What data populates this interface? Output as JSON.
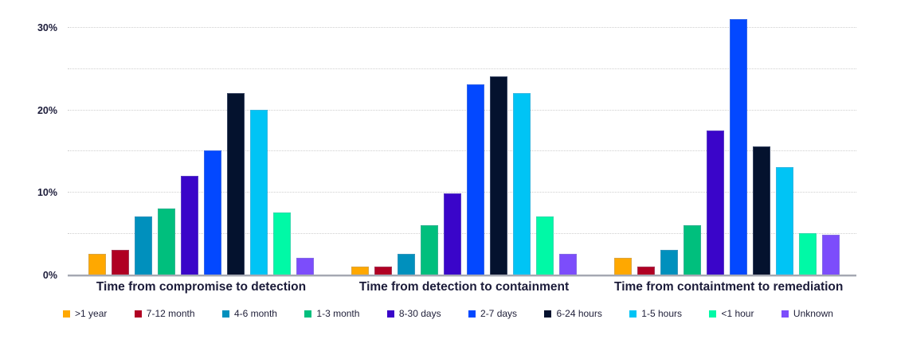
{
  "chart_data": {
    "type": "bar",
    "title": "",
    "xlabel": "",
    "ylabel": "",
    "categories": [
      "Time from compromise to detection",
      "Time from detection to containment",
      "Time from containtment to remediation"
    ],
    "series": [
      {
        "name": ">1 year",
        "color": "#FFA800",
        "values": [
          2.5,
          1,
          2
        ]
      },
      {
        "name": "7-12 month",
        "color": "#B00023",
        "values": [
          3,
          1,
          1
        ]
      },
      {
        "name": "4-6 month",
        "color": "#0090BD",
        "values": [
          7,
          2.5,
          3
        ]
      },
      {
        "name": "1-3 month",
        "color": "#00BF7D",
        "values": [
          8,
          6,
          6
        ]
      },
      {
        "name": "8-30 days",
        "color": "#3A05C9",
        "values": [
          12,
          9.8,
          17.5
        ]
      },
      {
        "name": "2-7 days",
        "color": "#0348FF",
        "values": [
          15,
          23,
          31
        ]
      },
      {
        "name": "6-24 hours",
        "color": "#04122E",
        "values": [
          22,
          24,
          15.5
        ]
      },
      {
        "name": "1-5 hours",
        "color": "#00C4F5",
        "values": [
          20,
          22,
          13
        ]
      },
      {
        "name": "<1 hour",
        "color": "#00F9A6",
        "values": [
          7.5,
          7,
          5
        ]
      },
      {
        "name": "Unknown",
        "color": "#7C4DFB",
        "values": [
          2,
          2.5,
          4.8
        ]
      }
    ],
    "y_ticks": [
      {
        "label": "0%",
        "value": 0
      },
      {
        "label": "10%",
        "value": 10
      },
      {
        "label": "20%",
        "value": 20
      },
      {
        "label": "30%",
        "value": 30
      }
    ],
    "ylim": [
      0,
      32.4
    ],
    "gridline_step": 5,
    "grid": true,
    "legend_position": "bottom",
    "colors": {
      "tick_label_text": "#1c1c3a",
      "category_label_text": "#1c1c3a",
      "legend_text": "#1e1e38",
      "gridline": "#cfcfcf",
      "axis_line": "#a5a8b2",
      "background": "#ffffff"
    }
  }
}
